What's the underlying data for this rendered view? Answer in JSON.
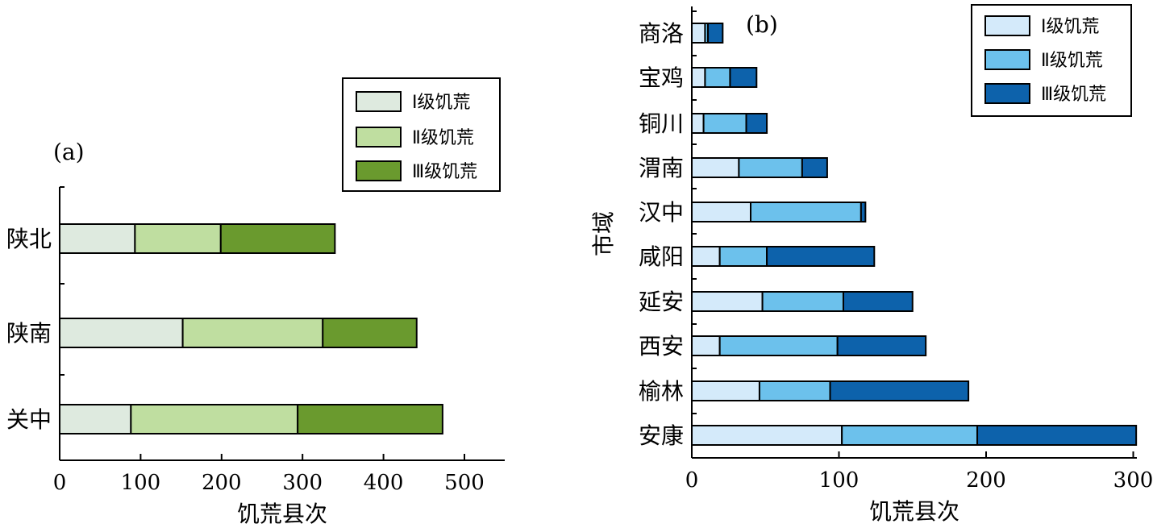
{
  "chart_data": [
    {
      "panel": "(a)",
      "type": "bar",
      "orientation": "horizontal",
      "stacked": true,
      "xlabel": "饥荒县次",
      "ylabel": "",
      "xlim": [
        0,
        550
      ],
      "xticks": [
        0,
        100,
        200,
        300,
        400,
        500
      ],
      "categories": [
        "陕北",
        "陕南",
        "关中"
      ],
      "series": [
        {
          "name": "Ⅰ级饥荒",
          "color": "#deeadf",
          "values": [
            93,
            152,
            88
          ]
        },
        {
          "name": "Ⅱ级饥荒",
          "color": "#bfdea0",
          "values": [
            106,
            173,
            206
          ]
        },
        {
          "name": "Ⅲ级饥荒",
          "color": "#6a9a2e",
          "values": [
            141,
            116,
            179
          ]
        }
      ],
      "legend": "top-right"
    },
    {
      "panel": "(b)",
      "type": "bar",
      "orientation": "horizontal",
      "stacked": true,
      "xlabel": "饥荒县次",
      "ylabel": "市域",
      "xlim": [
        0,
        305
      ],
      "xticks": [
        0,
        100,
        200,
        300
      ],
      "categories": [
        "商洛",
        "宝鸡",
        "铜川",
        "渭南",
        "汉中",
        "咸阳",
        "延安",
        "西安",
        "榆林",
        "安康"
      ],
      "series": [
        {
          "name": "Ⅰ级饥荒",
          "color": "#d4eafa",
          "values": [
            9,
            9,
            8,
            32,
            40,
            19,
            48,
            19,
            46,
            102
          ]
        },
        {
          "name": "Ⅱ级饥荒",
          "color": "#6cc1ec",
          "values": [
            2,
            17,
            29,
            43,
            75,
            32,
            55,
            80,
            48,
            92
          ]
        },
        {
          "name": "Ⅲ级饥荒",
          "color": "#0d62ab",
          "values": [
            10,
            18,
            14,
            17,
            3,
            73,
            47,
            60,
            94,
            108
          ]
        }
      ],
      "legend": "top-right"
    }
  ]
}
